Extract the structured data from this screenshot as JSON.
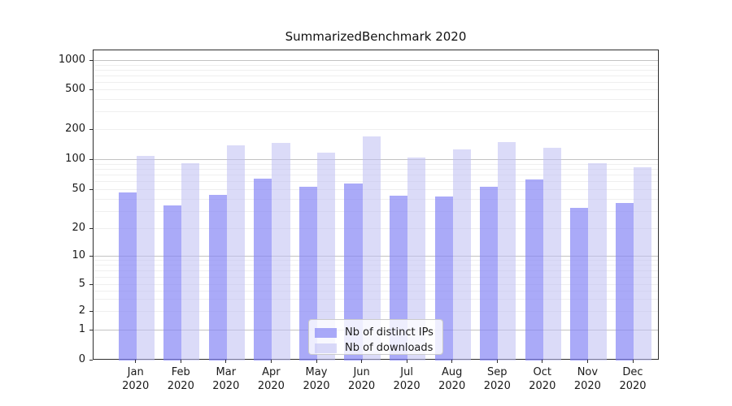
{
  "title": "SummarizedBenchmark 2020",
  "chart_data": {
    "type": "bar",
    "title": "SummarizedBenchmark 2020",
    "yscale": "symlog",
    "grid": true,
    "legend_position": "lower-center",
    "ylim": [
      0,
      1000
    ],
    "yticks": [
      0,
      1,
      2,
      5,
      10,
      20,
      50,
      100,
      200,
      500,
      1000
    ],
    "categories": [
      "Jan",
      "Feb",
      "Mar",
      "Apr",
      "May",
      "Jun",
      "Jul",
      "Aug",
      "Sep",
      "Oct",
      "Nov",
      "Dec"
    ],
    "year_label": "2020",
    "series": [
      {
        "name": "Nb of distinct IPs",
        "color": "rgba(130,130,245,0.68)",
        "values": [
          47,
          35,
          45,
          65,
          54,
          58,
          44,
          43,
          54,
          64,
          33,
          37
        ]
      },
      {
        "name": "Nb of downloads",
        "color": "rgba(190,190,243,0.55)",
        "values": [
          110,
          93,
          140,
          148,
          118,
          172,
          105,
          128,
          150,
          132,
          93,
          84
        ]
      }
    ],
    "colors": {
      "major_gridline": "#c3c3c3",
      "minor_gridline": "#efefef",
      "spine": "#2e2e2e",
      "text": "#1a1a1a"
    }
  }
}
